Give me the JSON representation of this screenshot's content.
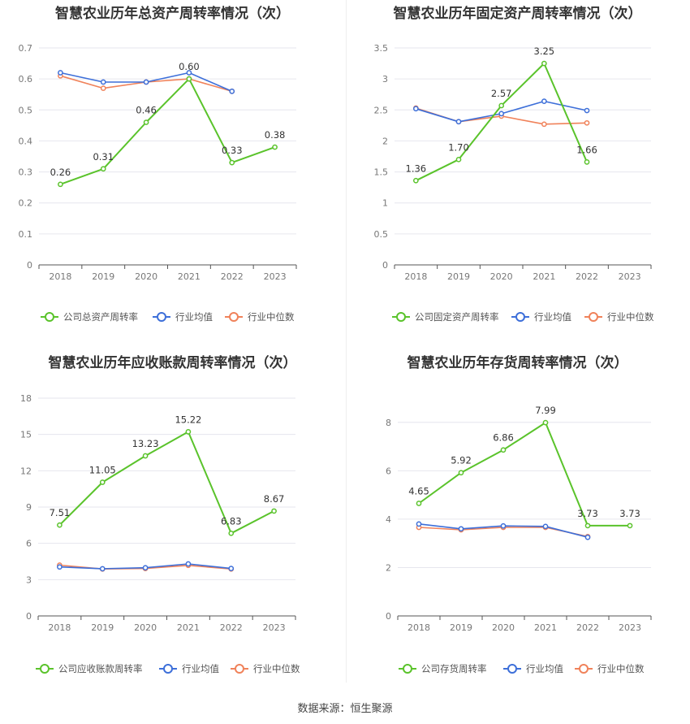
{
  "legend_labels": {
    "industry_avg": "行业均值",
    "industry_median": "行业中位数"
  },
  "colors": {
    "company": "#5ac32b",
    "industry_avg": "#3d6fd9",
    "industry_median": "#f0825a"
  },
  "source": "数据来源：恒生聚源",
  "chart_data": [
    {
      "type": "line",
      "title": "智慧农业历年总资产周转率情况（次）",
      "categories": [
        "2018",
        "2019",
        "2020",
        "2021",
        "2022",
        "2023"
      ],
      "ylim": [
        0,
        0.7
      ],
      "yticks": [
        "0",
        "0.1",
        "0.2",
        "0.3",
        "0.4",
        "0.5",
        "0.6",
        "0.7"
      ],
      "legend_position": "bottom",
      "series": [
        {
          "name": "公司总资产周转率",
          "key": "company",
          "values": [
            0.26,
            0.31,
            0.46,
            0.6,
            0.33,
            0.38
          ],
          "labels": [
            "0.26",
            "0.31",
            "0.46",
            "0.60",
            "0.33",
            "0.38"
          ]
        },
        {
          "name": "行业均值",
          "key": "industry_avg",
          "values": [
            0.62,
            0.59,
            0.59,
            0.62,
            0.56,
            null
          ]
        },
        {
          "name": "行业中位数",
          "key": "industry_median",
          "values": [
            0.61,
            0.57,
            0.59,
            0.6,
            0.56,
            null
          ]
        }
      ]
    },
    {
      "type": "line",
      "title": "智慧农业历年固定资产周转率情况（次）",
      "categories": [
        "2018",
        "2019",
        "2020",
        "2021",
        "2022",
        "2023"
      ],
      "ylim": [
        0,
        3.5
      ],
      "yticks": [
        "0",
        "0.5",
        "1",
        "1.5",
        "2",
        "2.5",
        "3",
        "3.5"
      ],
      "legend_position": "bottom",
      "series": [
        {
          "name": "公司固定资产周转率",
          "key": "company",
          "values": [
            1.36,
            1.7,
            2.57,
            3.25,
            1.66,
            null
          ],
          "labels": [
            "1.36",
            "1.70",
            "2.57",
            "3.25",
            "1.66",
            ""
          ]
        },
        {
          "name": "行业均值",
          "key": "industry_avg",
          "values": [
            2.52,
            2.31,
            2.44,
            2.64,
            2.49,
            null
          ]
        },
        {
          "name": "行业中位数",
          "key": "industry_median",
          "values": [
            2.53,
            2.31,
            2.4,
            2.27,
            2.29,
            null
          ]
        }
      ]
    },
    {
      "type": "line",
      "title": "智慧农业历年应收账款周转率情况（次）",
      "categories": [
        "2018",
        "2019",
        "2020",
        "2021",
        "2022",
        "2023"
      ],
      "ylim": [
        0,
        18
      ],
      "yticks": [
        "0",
        "3",
        "6",
        "9",
        "12",
        "15",
        "18"
      ],
      "legend_position": "bottom",
      "series": [
        {
          "name": "公司应收账款周转率",
          "key": "company",
          "values": [
            7.51,
            11.05,
            13.23,
            15.22,
            6.83,
            8.67
          ],
          "labels": [
            "7.51",
            "11.05",
            "13.23",
            "15.22",
            "6.83",
            "8.67"
          ]
        },
        {
          "name": "行业均值",
          "key": "industry_avg",
          "values": [
            4.05,
            3.9,
            3.98,
            4.3,
            3.92,
            null
          ]
        },
        {
          "name": "行业中位数",
          "key": "industry_median",
          "values": [
            4.2,
            3.88,
            3.92,
            4.18,
            3.88,
            null
          ]
        }
      ]
    },
    {
      "type": "line",
      "title": "智慧农业历年存货周转率情况（次）",
      "categories": [
        "2018",
        "2019",
        "2020",
        "2021",
        "2022",
        "2023"
      ],
      "ylim": [
        0,
        9
      ],
      "yticks": [
        "0",
        "2",
        "4",
        "6",
        "8"
      ],
      "legend_position": "bottom",
      "series": [
        {
          "name": "公司存货周转率",
          "key": "company",
          "values": [
            4.65,
            5.92,
            6.86,
            7.99,
            3.73,
            3.73
          ],
          "labels": [
            "4.65",
            "5.92",
            "6.86",
            "7.99",
            "3.73",
            "3.73"
          ]
        },
        {
          "name": "行业均值",
          "key": "industry_avg",
          "values": [
            3.8,
            3.6,
            3.72,
            3.7,
            3.25,
            null
          ]
        },
        {
          "name": "行业中位数",
          "key": "industry_median",
          "values": [
            3.66,
            3.56,
            3.66,
            3.66,
            3.28,
            null
          ]
        }
      ]
    }
  ]
}
